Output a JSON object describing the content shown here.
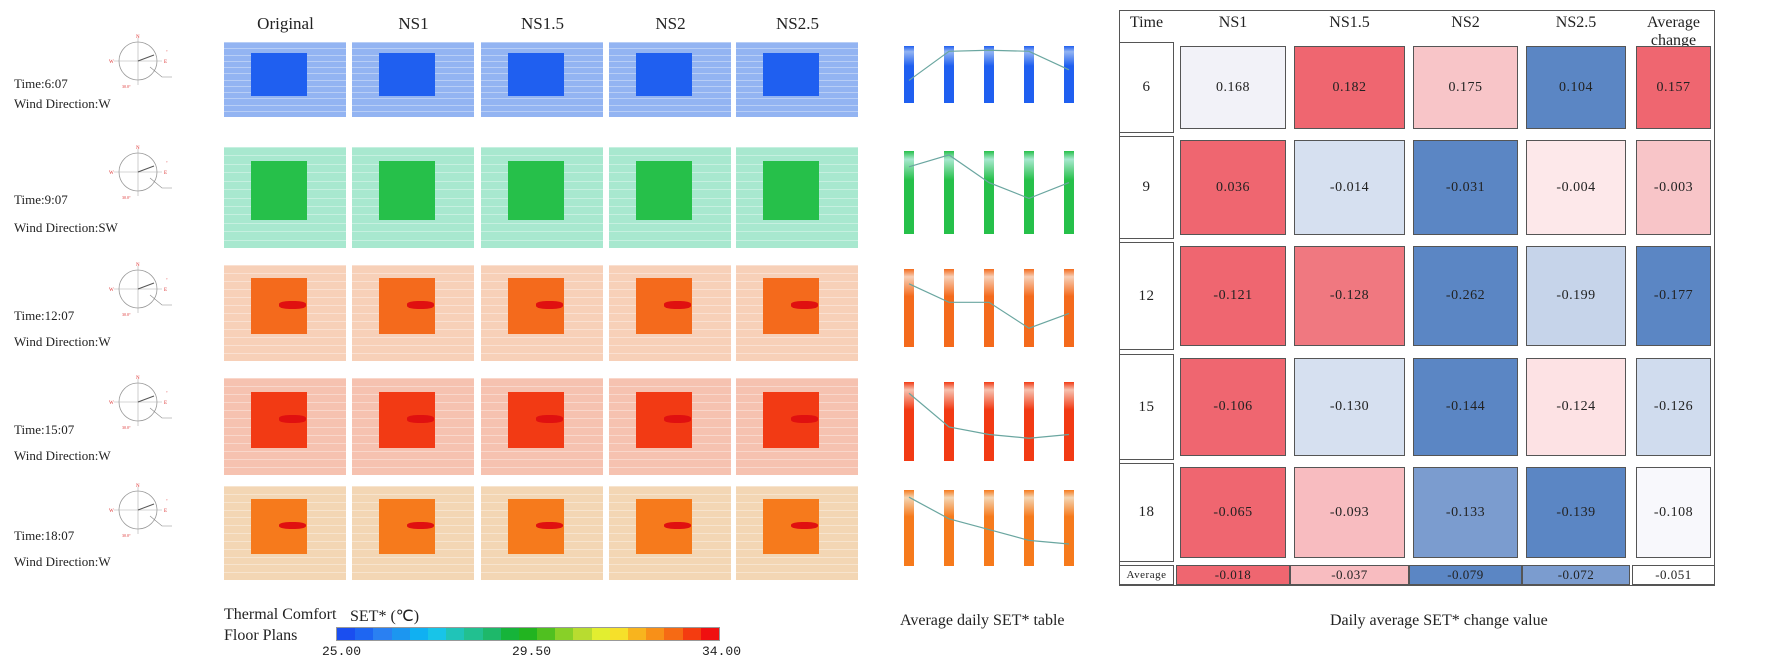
{
  "floor_plans": {
    "columns": [
      "Original",
      "NS1",
      "NS1.5",
      "NS2",
      "NS2.5"
    ],
    "rows": [
      {
        "time": "Time:6:07",
        "wind": "Wind Direction:W",
        "bg": "#93b4f2",
        "core": "#1f5ff0"
      },
      {
        "time": "Time:9:07",
        "wind": "Wind Direction:SW",
        "bg": "#a8e8cf",
        "core": "#26c04a"
      },
      {
        "time": "Time:12:07",
        "wind": "Wind Direction:W",
        "bg": "#f7d0b8",
        "core": "#f46a1c"
      },
      {
        "time": "Time:15:07",
        "wind": "Wind Direction:W",
        "bg": "#f6c2b0",
        "core": "#f23a14"
      },
      {
        "time": "Time:18:07",
        "wind": "Wind Direction:W",
        "bg": "#f3d6b4",
        "core": "#f67a1c"
      }
    ],
    "legend_title_1": "Thermal Comfort",
    "legend_title_unit": "SET* (℃)",
    "legend_title_2": "Floor Plans",
    "legend_ticks": [
      "25.00",
      "29.50",
      "34.00"
    ],
    "legend_colors": [
      "#1a4ef0",
      "#1e66f2",
      "#2a80f2",
      "#1c96f0",
      "#10b0f2",
      "#18c4e8",
      "#20c4b8",
      "#22c090",
      "#1eb86a",
      "#16b43a",
      "#22b420",
      "#50c020",
      "#88d028",
      "#b8dc30",
      "#e2ee30",
      "#f6e02a",
      "#f8b41e",
      "#f89018",
      "#f66a14",
      "#f43c10",
      "#f01010"
    ]
  },
  "mini_charts": {
    "caption": "Average daily SET* table"
  },
  "chart_data": {
    "type": "heatmap",
    "title": "Daily average SET* change value",
    "columns": [
      "NS1",
      "NS1.5",
      "NS2",
      "NS2.5",
      "Average change"
    ],
    "row_header": "Time",
    "rows": [
      {
        "label": "6",
        "values": [
          "0.168",
          "0.182",
          "0.175",
          "0.104",
          "0.157"
        ],
        "colors": [
          "#f2f2f8",
          "#ef6670",
          "#f8c5c8",
          "#5b86c4",
          "#ef6670"
        ]
      },
      {
        "label": "9",
        "values": [
          "0.036",
          "-0.014",
          "-0.031",
          "-0.004",
          "-0.003"
        ],
        "colors": [
          "#ef6670",
          "#d6e0f0",
          "#5b86c4",
          "#fde8ea",
          "#f8c5c8"
        ]
      },
      {
        "label": "12",
        "values": [
          "-0.121",
          "-0.128",
          "-0.262",
          "-0.199",
          "-0.177"
        ],
        "colors": [
          "#ef6670",
          "#f07880",
          "#5b86c4",
          "#c6d4ea",
          "#5b86c4"
        ]
      },
      {
        "label": "15",
        "values": [
          "-0.106",
          "-0.130",
          "-0.144",
          "-0.124",
          "-0.126"
        ],
        "colors": [
          "#ef6670",
          "#d6e0f0",
          "#5b86c4",
          "#fde2e4",
          "#d0dcee"
        ]
      },
      {
        "label": "18",
        "values": [
          "-0.065",
          "-0.093",
          "-0.133",
          "-0.139",
          "-0.108"
        ],
        "colors": [
          "#ef6670",
          "#f8bcc0",
          "#7b9ccf",
          "#5b86c4",
          "#f8f8fc"
        ]
      },
      {
        "label": "Average",
        "values": [
          "-0.018",
          "-0.037",
          "-0.079",
          "-0.072",
          "-0.051"
        ],
        "colors": [
          "#ef6670",
          "#f8bcc0",
          "#5b86c4",
          "#7b9ccf",
          "#ffffff"
        ]
      }
    ]
  }
}
